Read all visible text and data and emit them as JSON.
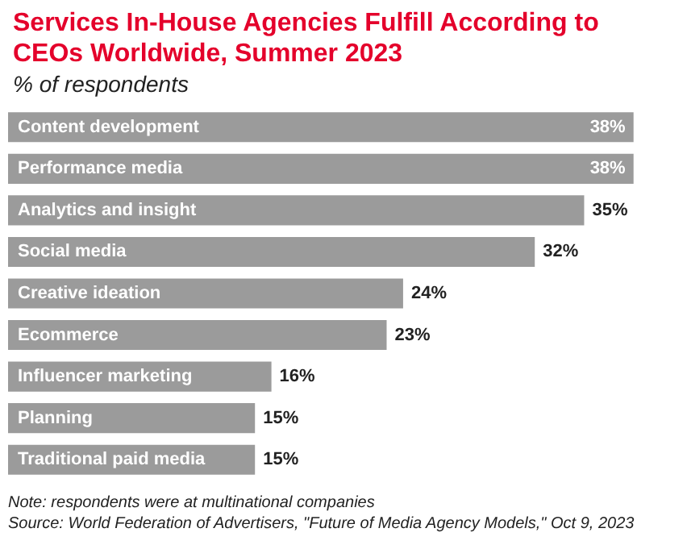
{
  "chart_data": {
    "type": "bar",
    "orientation": "horizontal",
    "title": "Services In-House Agencies Fulfill According to\nCEOs Worldwide, Summer 2023",
    "subtitle": "% of respondents",
    "categories": [
      "Content development",
      "Performance media",
      "Analytics and insight",
      "Social media",
      "Creative ideation",
      "Ecommerce",
      "Influencer marketing",
      "Planning",
      "Traditional paid media"
    ],
    "values": [
      38,
      38,
      35,
      32,
      24,
      23,
      16,
      15,
      15
    ],
    "value_labels": [
      "38%",
      "38%",
      "35%",
      "32%",
      "24%",
      "23%",
      "16%",
      "15%",
      "15%"
    ],
    "color": "#9b9b9b",
    "annotations": [
      "Note: respondents were at multinational companies",
      "Source: World Federation of Advertisers, \"Future of Media Agency Models,\" Oct 9, 2023"
    ]
  }
}
